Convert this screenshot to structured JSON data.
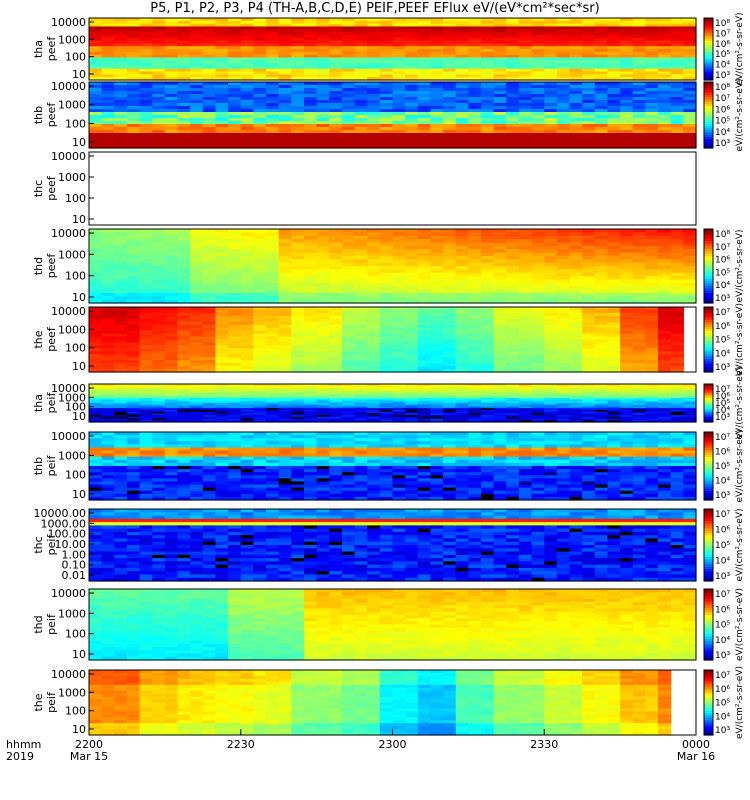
{
  "title": "P5, P1, P2, P3, P4 (TH-A,B,C,D,E) PEIF,PEEF EFlux eV/(eV*cm²*sec*sr)",
  "time_axis": {
    "row_label_top": "hhmm",
    "row_label_bottom": "2019",
    "ticks": [
      {
        "t": 0,
        "label": "2200",
        "sub": "Mar 15"
      },
      {
        "t": 30,
        "label": "2230",
        "sub": ""
      },
      {
        "t": 60,
        "label": "2300",
        "sub": ""
      },
      {
        "t": 90,
        "label": "2330",
        "sub": ""
      },
      {
        "t": 120,
        "label": "0000",
        "sub": "Mar 16"
      }
    ],
    "range_minutes": [
      0,
      120
    ]
  },
  "chart_data": [
    {
      "type": "heatmap",
      "ylabel": [
        "tha",
        "peef"
      ],
      "y_ticks": [
        "10000",
        "1000",
        "100",
        "10"
      ],
      "pattern": "tha_peef",
      "colorbar_ticks": [
        "10⁸",
        "10⁷",
        "10⁶",
        "10⁵",
        "10⁴",
        "10³"
      ],
      "colorbar_label": "eV/(cm²-s-sr-eV)"
    },
    {
      "type": "heatmap",
      "ylabel": [
        "thb",
        "peef"
      ],
      "y_ticks": [
        "10000",
        "1000",
        "100",
        "10"
      ],
      "pattern": "thb_peef",
      "colorbar_ticks": [
        "10⁸",
        "10⁷",
        "10⁶",
        "10⁵",
        "10⁴",
        "10³"
      ],
      "colorbar_label": "eV/(cm²-s-sr-eV)"
    },
    {
      "type": "heatmap",
      "ylabel": [
        "thc",
        "peef"
      ],
      "y_ticks": [
        "10000",
        "1000",
        "100",
        "10"
      ],
      "pattern": "empty",
      "colorbar_ticks": [],
      "colorbar_label": ""
    },
    {
      "type": "heatmap",
      "ylabel": [
        "thd",
        "peef"
      ],
      "y_ticks": [
        "10000",
        "1000",
        "100",
        "10"
      ],
      "pattern": "thd_peef",
      "colorbar_ticks": [
        "10⁸",
        "10⁷",
        "10⁶",
        "10⁵",
        "10⁴",
        "10³"
      ],
      "colorbar_label": "eV/(cm²-s-sr-eV)"
    },
    {
      "type": "heatmap",
      "ylabel": [
        "the",
        "peef"
      ],
      "y_ticks": [
        "10000",
        "1000",
        "100",
        "10"
      ],
      "pattern": "the_peef",
      "colorbar_ticks": [
        "10⁷",
        "10⁶",
        "10⁵",
        "10⁴",
        "10³"
      ],
      "colorbar_label": "eV/(cm²-s-sr-eV)"
    },
    {
      "type": "heatmap",
      "ylabel": [
        "tha",
        "peif"
      ],
      "y_ticks": [
        "10000",
        "1000",
        "100",
        "10"
      ],
      "pattern": "tha_peif",
      "colorbar_ticks": [
        "10⁷",
        "10⁶",
        "10⁵",
        "10⁴",
        "10³"
      ],
      "colorbar_label": "eV/(cm²-s-sr-eV)"
    },
    {
      "type": "heatmap",
      "ylabel": [
        "thb",
        "peif"
      ],
      "y_ticks": [
        "10000",
        "1000",
        "100",
        "10"
      ],
      "pattern": "thb_peif",
      "colorbar_ticks": [
        "10⁷",
        "10⁶",
        "10⁵",
        "10⁴",
        "10³"
      ],
      "colorbar_label": "eV/(cm²-s-sr-eV)"
    },
    {
      "type": "heatmap",
      "ylabel": [
        "thc",
        "peif"
      ],
      "y_ticks": [
        "10000.00",
        "1000.00",
        "100.00",
        "10.00",
        "1.00",
        "0.10",
        "0.01"
      ],
      "pattern": "thc_peif",
      "colorbar_ticks": [
        "10⁷",
        "10⁶",
        "10⁵",
        "10⁴",
        "10³"
      ],
      "colorbar_label": "eV/(cm²-s-sr-eV)"
    },
    {
      "type": "heatmap",
      "ylabel": [
        "thd",
        "peif"
      ],
      "y_ticks": [
        "10000",
        "1000",
        "100",
        "10"
      ],
      "pattern": "thd_peif",
      "colorbar_ticks": [
        "10⁷",
        "10⁶",
        "10⁵",
        "10⁴",
        "10³"
      ],
      "colorbar_label": "eV/(cm²-s-sr-eV)"
    },
    {
      "type": "heatmap",
      "ylabel": [
        "the",
        "peif"
      ],
      "y_ticks": [
        "10000",
        "1000",
        "100",
        "10"
      ],
      "pattern": "the_peif",
      "colorbar_ticks": [
        "10⁷",
        "10⁶",
        "10⁵",
        "10⁴",
        "10³"
      ],
      "colorbar_label": "eV/(cm²-s-sr-eV)"
    }
  ]
}
